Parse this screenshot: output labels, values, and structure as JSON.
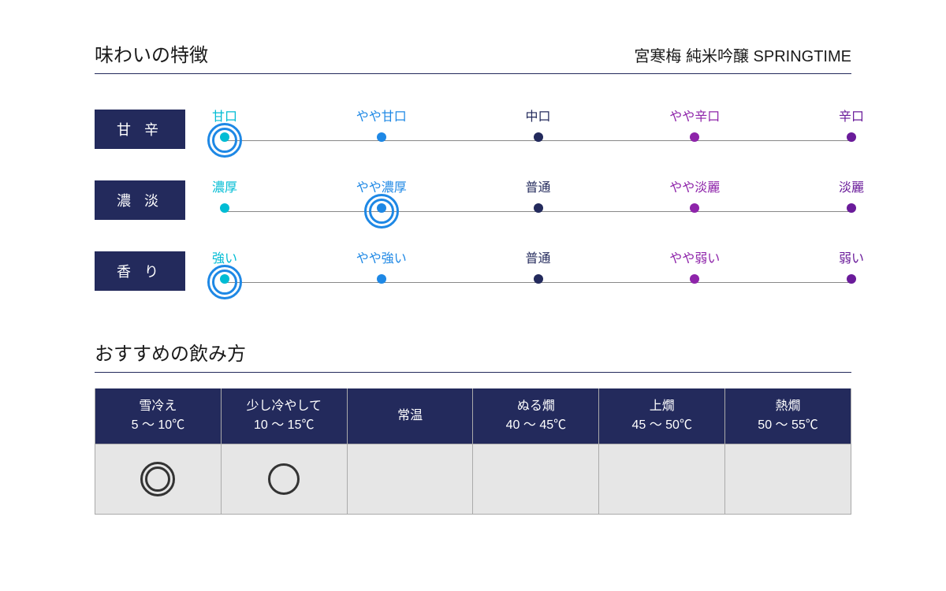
{
  "header": {
    "title": "味わいの特徴",
    "product": "宮寒梅 純米吟醸 SPRINGTIME"
  },
  "taste": {
    "positions_pct": [
      0,
      25,
      50,
      75,
      100
    ],
    "point_colors": [
      "#00bcd4",
      "#1e88e5",
      "#232a5c",
      "#8e24aa",
      "#6a1b9a"
    ],
    "ring_color": "#1e88e5",
    "line_color": "#888888",
    "label_bg": "#232a5c",
    "rows": [
      {
        "label": "甘 辛",
        "options": [
          "甘口",
          "やや甘口",
          "中口",
          "やや辛口",
          "辛口"
        ],
        "selected_index": 0
      },
      {
        "label": "濃 淡",
        "options": [
          "濃厚",
          "やや濃厚",
          "普通",
          "やや淡麗",
          "淡麗"
        ],
        "selected_index": 1
      },
      {
        "label": "香 り",
        "options": [
          "強い",
          "やや強い",
          "普通",
          "やや弱い",
          "弱い"
        ],
        "selected_index": 0
      }
    ]
  },
  "drink": {
    "subtitle": "おすすめの飲み方",
    "header_bg": "#232a5c",
    "cell_bg": "#e6e6e6",
    "border_color": "#aaaaaa",
    "columns": [
      {
        "name": "雪冷え",
        "range": "5 ～ 10℃",
        "mark": "double"
      },
      {
        "name": "少し冷やして",
        "range": "10 ～ 15℃",
        "mark": "single"
      },
      {
        "name": "常温",
        "range": "",
        "mark": ""
      },
      {
        "name": "ぬる燗",
        "range": "40 ～ 45℃",
        "mark": ""
      },
      {
        "name": "上燗",
        "range": "45 ～ 50℃",
        "mark": ""
      },
      {
        "name": "熱燗",
        "range": "50 ～ 55℃",
        "mark": ""
      }
    ]
  }
}
